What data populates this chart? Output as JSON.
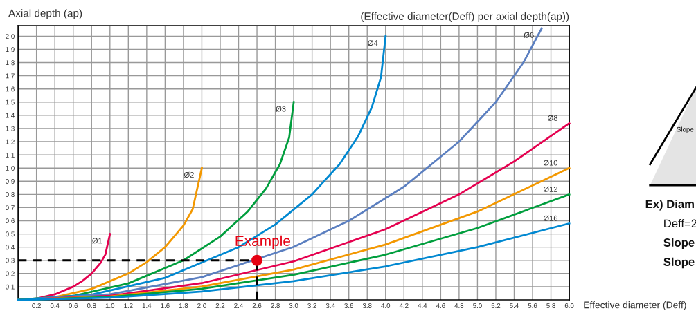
{
  "chart_data": {
    "type": "line",
    "title": "(Effective diameter(Deff) per axial depth(ap))",
    "xlabel": "Effective diameter (Deff)",
    "ylabel": "Axial depth (ap)",
    "series": [
      {
        "name": "Ø1",
        "color": "#e5004f",
        "x": [
          0,
          0.2,
          0.4,
          0.6,
          0.7,
          0.8,
          0.9,
          0.95,
          1.0
        ],
        "values": [
          0,
          0.01,
          0.042,
          0.1,
          0.143,
          0.2,
          0.282,
          0.344,
          0.5
        ]
      },
      {
        "name": "Ø2",
        "color": "#f39800",
        "x": [
          0,
          0.4,
          0.8,
          1.2,
          1.4,
          1.6,
          1.8,
          1.9,
          2.0
        ],
        "values": [
          0,
          0.02,
          0.083,
          0.2,
          0.286,
          0.4,
          0.564,
          0.688,
          1.0
        ]
      },
      {
        "name": "Ø3",
        "color": "#009e3d",
        "x": [
          0,
          0.6,
          1.2,
          1.8,
          2.2,
          2.5,
          2.7,
          2.85,
          2.95,
          3.0
        ],
        "values": [
          0,
          0.03,
          0.125,
          0.3,
          0.48,
          0.671,
          0.846,
          1.03,
          1.23,
          1.5
        ]
      },
      {
        "name": "Ø4",
        "color": "#0088d1",
        "x": [
          0,
          0.8,
          1.6,
          2.4,
          2.8,
          3.2,
          3.5,
          3.7,
          3.85,
          3.95,
          4.0
        ],
        "values": [
          0,
          0.04,
          0.167,
          0.4,
          0.572,
          0.8,
          1.03,
          1.24,
          1.46,
          1.69,
          2.0
        ]
      },
      {
        "name": "Ø6",
        "color": "#5b7fc0",
        "x": [
          0,
          1,
          2,
          3,
          3.6,
          4.2,
          4.8,
          5.2,
          5.5,
          5.7
        ],
        "values": [
          0,
          0.042,
          0.172,
          0.402,
          0.6,
          0.858,
          1.2,
          1.5,
          1.8,
          2.06
        ]
      },
      {
        "name": "Ø8",
        "color": "#e5004f",
        "x": [
          0,
          1,
          2,
          3,
          4,
          4.8,
          5.4,
          6
        ],
        "values": [
          0,
          0.031,
          0.127,
          0.292,
          0.536,
          0.8,
          1.05,
          1.34
        ]
      },
      {
        "name": "Ø10",
        "color": "#f39800",
        "x": [
          0,
          1,
          2,
          3,
          4,
          5,
          6
        ],
        "values": [
          0,
          0.025,
          0.101,
          0.23,
          0.42,
          0.67,
          1.0
        ]
      },
      {
        "name": "Ø12",
        "color": "#009e3d",
        "x": [
          0,
          1,
          2,
          3,
          4,
          5,
          6
        ],
        "values": [
          0,
          0.021,
          0.084,
          0.19,
          0.343,
          0.545,
          0.8
        ]
      },
      {
        "name": "Ø16",
        "color": "#0088d1",
        "x": [
          0,
          1,
          2,
          3,
          4,
          5,
          6
        ],
        "values": [
          0,
          0.016,
          0.063,
          0.142,
          0.254,
          0.4,
          0.58
        ]
      },
      {
        "type": "line",
        "line_style": "dashed",
        "color": "#000000",
        "x": [
          0,
          2.6
        ],
        "values": [
          0.3,
          0.3
        ]
      },
      {
        "type": "line",
        "line_style": "dashed",
        "color": "#000000",
        "x": [
          2.6,
          2.6
        ],
        "values": [
          0,
          0.3
        ]
      },
      {
        "type": "scatter",
        "marker": "circle",
        "color": "#e60012",
        "x": [
          2.6
        ],
        "values": [
          0.3
        ]
      }
    ],
    "annotations": [
      {
        "text": "Example",
        "x": 2.6,
        "y": 0.3
      },
      "Slope",
      "Ex) Diam",
      "Deff=2",
      "Slope",
      "Slope"
    ],
    "xlim": [
      0,
      6.0
    ],
    "ylim": [
      0,
      2.08
    ],
    "xticks": [
      {
        "value": 0.2,
        "label": "0.2"
      },
      {
        "value": 0.4,
        "label": "0.4"
      },
      {
        "value": 0.6,
        "label": "0.6"
      },
      {
        "value": 0.8,
        "label": "0.8"
      },
      {
        "value": 1.0,
        "label": "1.0"
      },
      {
        "value": 1.2,
        "label": "1.2"
      },
      {
        "value": 1.4,
        "label": "1.4"
      },
      {
        "value": 1.6,
        "label": "1.6"
      },
      {
        "value": 1.8,
        "label": "1.8"
      },
      {
        "value": 2.0,
        "label": "2.0"
      },
      {
        "value": 2.2,
        "label": "2.2"
      },
      {
        "value": 2.4,
        "label": "2.4"
      },
      {
        "value": 2.6,
        "label": "2.6"
      },
      {
        "value": 2.8,
        "label": "2.8"
      },
      {
        "value": 3.0,
        "label": "3.0"
      },
      {
        "value": 3.2,
        "label": "3.2"
      },
      {
        "value": 3.4,
        "label": "3.4"
      },
      {
        "value": 3.6,
        "label": "3.6"
      },
      {
        "value": 3.8,
        "label": "3.8"
      },
      {
        "value": 4.0,
        "label": "4.0"
      },
      {
        "value": 4.2,
        "label": "4.2"
      },
      {
        "value": 4.4,
        "label": "4.4"
      },
      {
        "value": 4.6,
        "label": "4.6"
      },
      {
        "value": 4.8,
        "label": "4.8"
      },
      {
        "value": 5.0,
        "label": "5.0"
      },
      {
        "value": 5.2,
        "label": "5.2"
      },
      {
        "value": 5.4,
        "label": "5.4"
      },
      {
        "value": 5.6,
        "label": "5.6"
      },
      {
        "value": 5.8,
        "label": "5.8"
      },
      {
        "value": 6.0,
        "label": "6.0"
      }
    ],
    "yticks": [
      0.1,
      0.2,
      0.3,
      0.4,
      0.5,
      0.6,
      0.7,
      0.8,
      0.9,
      {
        "value": 1.0,
        "label": "1.0"
      },
      1.1,
      1.2,
      1.3,
      1.4,
      1.5,
      1.6,
      1.7,
      1.8,
      1.9,
      {
        "value": 2.0,
        "label": "2.0"
      }
    ],
    "grid": true,
    "marker": "none",
    "line_style": "solid",
    "legend": false
  }
}
